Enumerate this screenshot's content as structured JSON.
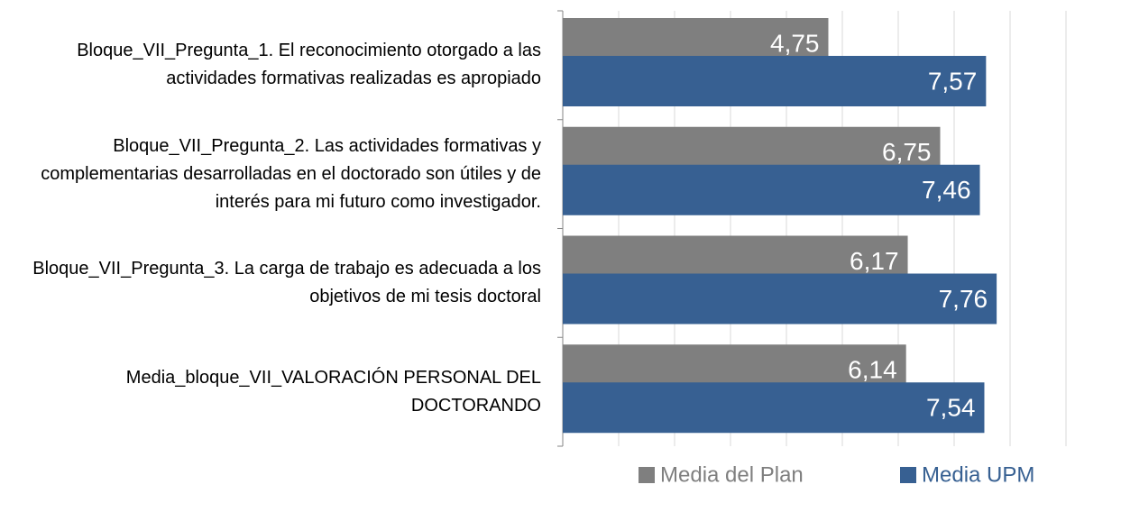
{
  "chart_data": {
    "type": "hbar",
    "categories": [
      "Bloque_VII_Pregunta_1. El reconocimiento otorgado a las actividades formativas realizadas es apropiado",
      "Bloque_VII_Pregunta_2. Las actividades formativas y complementarias desarrolladas en el doctorado son útiles y de interés para mi futuro como investigador.",
      "Bloque_VII_Pregunta_3. La carga de trabajo es adecuada a los objetivos de mi tesis doctoral",
      "Media_bloque_VII_VALORACIÓN PERSONAL DEL DOCTORANDO"
    ],
    "series": [
      {
        "name": "Media del Plan",
        "color": "#7f7f7f",
        "values": [
          4.75,
          6.75,
          6.17,
          6.14
        ],
        "value_labels": [
          "4,75",
          "6,75",
          "6,17",
          "6,14"
        ]
      },
      {
        "name": "Media UPM",
        "color": "#376092",
        "values": [
          7.57,
          7.46,
          7.76,
          7.54
        ],
        "value_labels": [
          "7,57",
          "7,46",
          "7,76",
          "7,54"
        ]
      }
    ],
    "xlim": [
      0,
      9
    ],
    "xticks": [
      0,
      1,
      2,
      3,
      4,
      5,
      6,
      7,
      8,
      9
    ],
    "grid": true,
    "legend": "bottom"
  }
}
